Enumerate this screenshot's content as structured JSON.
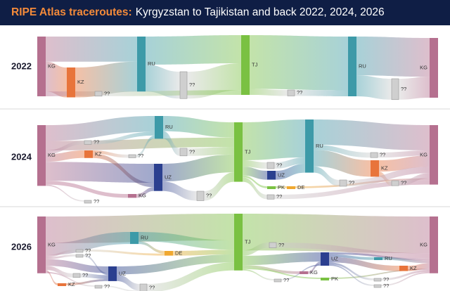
{
  "header": {
    "title_highlight": "RIPE Atlas traceroutes:",
    "title_rest": "Kyrgyzstan to Tajikistan and back 2022, 2024, 2026"
  },
  "panels": [
    {
      "year": "2022",
      "nodes": [
        {
          "label": "KG",
          "color": "#b5708f"
        },
        {
          "label": "KZ",
          "color": "#e8743b"
        },
        {
          "label": "??",
          "color": "#cfcfcf"
        },
        {
          "label": "RU",
          "color": "#3d9aa8"
        },
        {
          "label": "??",
          "color": "#cfcfcf"
        },
        {
          "label": "TJ",
          "color": "#7ac142"
        },
        {
          "label": "??",
          "color": "#cfcfcf"
        },
        {
          "label": "RU",
          "color": "#3d9aa8"
        },
        {
          "label": "??",
          "color": "#cfcfcf"
        },
        {
          "label": "KG",
          "color": "#b5708f"
        }
      ],
      "links": [
        {
          "source": 0,
          "target": 3,
          "value": 42
        },
        {
          "source": 0,
          "target": 1,
          "value": 50
        },
        {
          "source": 0,
          "target": 2,
          "value": 8
        },
        {
          "source": 1,
          "target": 3,
          "value": 50
        },
        {
          "source": 3,
          "target": 5,
          "value": 47
        },
        {
          "source": 3,
          "target": 4,
          "value": 45
        },
        {
          "source": 4,
          "target": 5,
          "value": 45
        },
        {
          "source": 2,
          "target": 5,
          "value": 8
        },
        {
          "source": 5,
          "target": 7,
          "value": 90
        },
        {
          "source": 5,
          "target": 6,
          "value": 10
        },
        {
          "source": 6,
          "target": 7,
          "value": 10
        },
        {
          "source": 7,
          "target": 9,
          "value": 65
        },
        {
          "source": 7,
          "target": 8,
          "value": 35
        },
        {
          "source": 8,
          "target": 9,
          "value": 35
        }
      ]
    },
    {
      "year": "2024",
      "nodes": [
        {
          "label": "KG",
          "color": "#b5708f"
        },
        {
          "label": "??",
          "color": "#cfcfcf"
        },
        {
          "label": "KZ",
          "color": "#e8743b"
        },
        {
          "label": "??",
          "color": "#cfcfcf"
        },
        {
          "label": "KG",
          "color": "#b5708f"
        },
        {
          "label": "??",
          "color": "#cfcfcf"
        },
        {
          "label": "RU",
          "color": "#3d9aa8"
        },
        {
          "label": "UZ",
          "color": "#2b3f8f"
        },
        {
          "label": "??",
          "color": "#cfcfcf"
        },
        {
          "label": "??",
          "color": "#cfcfcf"
        },
        {
          "label": "TJ",
          "color": "#7ac142"
        },
        {
          "label": "??",
          "color": "#cfcfcf"
        },
        {
          "label": "UZ",
          "color": "#2b3f8f"
        },
        {
          "label": "PK",
          "color": "#7ac142"
        },
        {
          "label": "DE",
          "color": "#f0a830"
        },
        {
          "label": "??",
          "color": "#cfcfcf"
        },
        {
          "label": "RU",
          "color": "#3d9aa8"
        },
        {
          "label": "??",
          "color": "#cfcfcf"
        },
        {
          "label": "KZ",
          "color": "#e8743b"
        },
        {
          "label": "??",
          "color": "#cfcfcf"
        },
        {
          "label": "??",
          "color": "#cfcfcf"
        },
        {
          "label": "KG",
          "color": "#b5708f"
        }
      ],
      "links": [
        {
          "source": 0,
          "target": 10,
          "value": 15
        },
        {
          "source": 0,
          "target": 6,
          "value": 25
        },
        {
          "source": 0,
          "target": 1,
          "value": 6
        },
        {
          "source": 0,
          "target": 2,
          "value": 12
        },
        {
          "source": 0,
          "target": 7,
          "value": 30
        },
        {
          "source": 0,
          "target": 3,
          "value": 2
        },
        {
          "source": 0,
          "target": 4,
          "value": 6
        },
        {
          "source": 1,
          "target": 6,
          "value": 6
        },
        {
          "source": 2,
          "target": 5,
          "value": 5
        },
        {
          "source": 2,
          "target": 7,
          "value": 7
        },
        {
          "source": 5,
          "target": 6,
          "value": 5
        },
        {
          "source": 4,
          "target": 7,
          "value": 6
        },
        {
          "source": 6,
          "target": 10,
          "value": 24
        },
        {
          "source": 6,
          "target": 8,
          "value": 12
        },
        {
          "source": 8,
          "target": 10,
          "value": 12
        },
        {
          "source": 7,
          "target": 10,
          "value": 28
        },
        {
          "source": 7,
          "target": 9,
          "value": 15
        },
        {
          "source": 9,
          "target": 10,
          "value": 15
        },
        {
          "source": 10,
          "target": 16,
          "value": 60
        },
        {
          "source": 10,
          "target": 11,
          "value": 10
        },
        {
          "source": 10,
          "target": 12,
          "value": 14
        },
        {
          "source": 10,
          "target": 13,
          "value": 3
        },
        {
          "source": 10,
          "target": 15,
          "value": 7
        },
        {
          "source": 11,
          "target": 16,
          "value": 10
        },
        {
          "source": 12,
          "target": 16,
          "value": 14
        },
        {
          "source": 13,
          "target": 14,
          "value": 3
        },
        {
          "source": 14,
          "target": 21,
          "value": 3
        },
        {
          "source": 15,
          "target": 21,
          "value": 7
        },
        {
          "source": 16,
          "target": 21,
          "value": 40
        },
        {
          "source": 16,
          "target": 17,
          "value": 8
        },
        {
          "source": 16,
          "target": 18,
          "value": 26
        },
        {
          "source": 16,
          "target": 19,
          "value": 10
        },
        {
          "source": 17,
          "target": 21,
          "value": 8
        },
        {
          "source": 18,
          "target": 21,
          "value": 18
        },
        {
          "source": 18,
          "target": 20,
          "value": 8
        },
        {
          "source": 20,
          "target": 21,
          "value": 8
        },
        {
          "source": 19,
          "target": 21,
          "value": 10
        }
      ]
    },
    {
      "year": "2026",
      "nodes": [
        {
          "label": "KG",
          "color": "#b5708f"
        },
        {
          "label": "??",
          "color": "#cfcfcf"
        },
        {
          "label": "??",
          "color": "#cfcfcf"
        },
        {
          "label": "??",
          "color": "#cfcfcf"
        },
        {
          "label": "KZ",
          "color": "#e8743b"
        },
        {
          "label": "??",
          "color": "#cfcfcf"
        },
        {
          "label": "RU",
          "color": "#3d9aa8"
        },
        {
          "label": "DE",
          "color": "#f0a830"
        },
        {
          "label": "UZ",
          "color": "#2b3f8f"
        },
        {
          "label": "??",
          "color": "#cfcfcf"
        },
        {
          "label": "TJ",
          "color": "#7ac142"
        },
        {
          "label": "??",
          "color": "#cfcfcf"
        },
        {
          "label": "KG",
          "color": "#b5708f"
        },
        {
          "label": "??",
          "color": "#cfcfcf"
        },
        {
          "label": "UZ",
          "color": "#2b3f8f"
        },
        {
          "label": "PK",
          "color": "#7ac142"
        },
        {
          "label": "RU",
          "color": "#3d9aa8"
        },
        {
          "label": "KZ",
          "color": "#e8743b"
        },
        {
          "label": "??",
          "color": "#cfcfcf"
        },
        {
          "label": "??",
          "color": "#cfcfcf"
        },
        {
          "label": "KG",
          "color": "#b5708f"
        }
      ],
      "links": [
        {
          "source": 0,
          "target": 10,
          "value": 40
        },
        {
          "source": 0,
          "target": 6,
          "value": 18
        },
        {
          "source": 0,
          "target": 1,
          "value": 3
        },
        {
          "source": 0,
          "target": 2,
          "value": 3
        },
        {
          "source": 0,
          "target": 3,
          "value": 6
        },
        {
          "source": 0,
          "target": 8,
          "value": 10
        },
        {
          "source": 0,
          "target": 4,
          "value": 3
        },
        {
          "source": 0,
          "target": 5,
          "value": 2
        },
        {
          "source": 1,
          "target": 7,
          "value": 3
        },
        {
          "source": 2,
          "target": 8,
          "value": 3
        },
        {
          "source": 3,
          "target": 8,
          "value": 6
        },
        {
          "source": 4,
          "target": 8,
          "value": 3
        },
        {
          "source": 5,
          "target": 9,
          "value": 2
        },
        {
          "source": 6,
          "target": 10,
          "value": 14
        },
        {
          "source": 6,
          "target": 7,
          "value": 4
        },
        {
          "source": 7,
          "target": 10,
          "value": 7
        },
        {
          "source": 8,
          "target": 10,
          "value": 12
        },
        {
          "source": 8,
          "target": 9,
          "value": 10
        },
        {
          "source": 9,
          "target": 10,
          "value": 12
        },
        {
          "source": 10,
          "target": 20,
          "value": 55
        },
        {
          "source": 10,
          "target": 11,
          "value": 8
        },
        {
          "source": 10,
          "target": 14,
          "value": 14
        },
        {
          "source": 10,
          "target": 12,
          "value": 4
        },
        {
          "source": 10,
          "target": 13,
          "value": 2
        },
        {
          "source": 10,
          "target": 15,
          "value": 2
        },
        {
          "source": 11,
          "target": 20,
          "value": 8
        },
        {
          "source": 12,
          "target": 14,
          "value": 4
        },
        {
          "source": 13,
          "target": 14,
          "value": 2
        },
        {
          "source": 15,
          "target": 20,
          "value": 2
        },
        {
          "source": 14,
          "target": 16,
          "value": 4
        },
        {
          "source": 14,
          "target": 17,
          "value": 8
        },
        {
          "source": 14,
          "target": 18,
          "value": 3
        },
        {
          "source": 14,
          "target": 19,
          "value": 2
        },
        {
          "source": 14,
          "target": 20,
          "value": 3
        },
        {
          "source": 16,
          "target": 20,
          "value": 4
        },
        {
          "source": 17,
          "target": 20,
          "value": 8
        },
        {
          "source": 18,
          "target": 20,
          "value": 3
        },
        {
          "source": 19,
          "target": 20,
          "value": 2
        }
      ]
    }
  ]
}
